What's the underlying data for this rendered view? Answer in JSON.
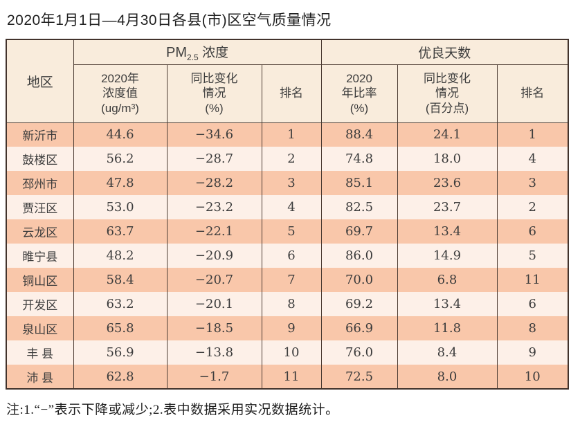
{
  "title": "2020年1月1日—4月30日各县(市)区空气质量情况",
  "table": {
    "header": {
      "region": "地区",
      "pm_prefix": "PM",
      "pm_sub": "2.5",
      "pm_suffix": " 浓度",
      "good_days": "优良天数"
    },
    "subheader": {
      "pm_value": "2020年\n浓度值\n(ug/m³)",
      "pm_change": "同比变化\n情况\n(%)",
      "pm_rank": "排名",
      "good_rate": "2020\n年比率\n(%)",
      "good_change": "同比变化\n情况\n(百分点)",
      "good_rank": "排名"
    },
    "column_keys": [
      "region",
      "pm_value",
      "pm_change",
      "pm_rank",
      "good_rate",
      "good_change",
      "good_rank"
    ],
    "rows": [
      {
        "region": "新沂市",
        "pm_value": "44.6",
        "pm_change": "−34.6",
        "pm_rank": "1",
        "good_rate": "88.4",
        "good_change": "24.1",
        "good_rank": "1"
      },
      {
        "region": "鼓楼区",
        "pm_value": "56.2",
        "pm_change": "−28.7",
        "pm_rank": "2",
        "good_rate": "74.8",
        "good_change": "18.0",
        "good_rank": "4"
      },
      {
        "region": "邳州市",
        "pm_value": "47.8",
        "pm_change": "−28.2",
        "pm_rank": "3",
        "good_rate": "85.1",
        "good_change": "23.6",
        "good_rank": "3"
      },
      {
        "region": "贾汪区",
        "pm_value": "53.0",
        "pm_change": "−23.2",
        "pm_rank": "4",
        "good_rate": "82.5",
        "good_change": "23.7",
        "good_rank": "2"
      },
      {
        "region": "云龙区",
        "pm_value": "63.7",
        "pm_change": "−22.1",
        "pm_rank": "5",
        "good_rate": "69.7",
        "good_change": "13.4",
        "good_rank": "6"
      },
      {
        "region": "睢宁县",
        "pm_value": "48.2",
        "pm_change": "−20.9",
        "pm_rank": "6",
        "good_rate": "86.0",
        "good_change": "14.9",
        "good_rank": "5"
      },
      {
        "region": "铜山区",
        "pm_value": "58.4",
        "pm_change": "−20.7",
        "pm_rank": "7",
        "good_rate": "70.0",
        "good_change": "6.8",
        "good_rank": "11"
      },
      {
        "region": "开发区",
        "pm_value": "63.2",
        "pm_change": "−20.1",
        "pm_rank": "8",
        "good_rate": "69.2",
        "good_change": "13.4",
        "good_rank": "6"
      },
      {
        "region": "泉山区",
        "pm_value": "65.8",
        "pm_change": "−18.5",
        "pm_rank": "9",
        "good_rate": "66.9",
        "good_change": "11.8",
        "good_rank": "8"
      },
      {
        "region": "丰 县",
        "pm_value": "56.9",
        "pm_change": "−13.8",
        "pm_rank": "10",
        "good_rate": "76.0",
        "good_change": "8.4",
        "good_rank": "9"
      },
      {
        "region": "沛 县",
        "pm_value": "62.8",
        "pm_change": "−1.7",
        "pm_rank": "11",
        "good_rate": "72.5",
        "good_change": "8.0",
        "good_rank": "10"
      }
    ],
    "colors": {
      "row_odd_bg": "#f9c7aa",
      "row_even_bg": "#fdf0e8",
      "header_bg": "#f9ecdc",
      "border": "#42332c"
    }
  },
  "note": "注:1.“−”表示下降或减少;2.表中数据采用实况数据统计。"
}
